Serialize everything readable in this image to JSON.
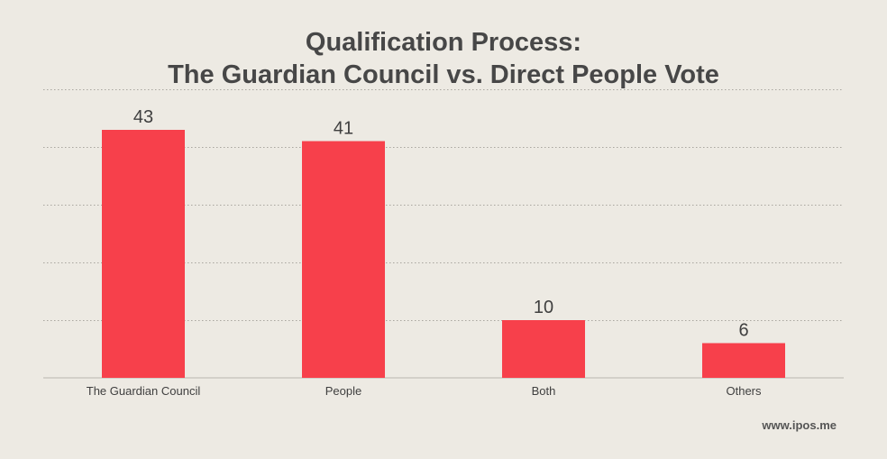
{
  "chart_data": {
    "type": "bar",
    "title_lines": [
      "Qualification Process:",
      "The Guardian Council vs. Direct People Vote"
    ],
    "categories": [
      "The Guardian Council",
      "People",
      "Both",
      "Others"
    ],
    "values": [
      43,
      41,
      10,
      6
    ],
    "ylim": [
      0,
      50
    ],
    "gridlines": [
      10,
      20,
      30,
      40,
      50
    ],
    "grid": true,
    "bar_color": "#f7404b",
    "xlabel": "",
    "ylabel": ""
  },
  "footer": {
    "source": "www.ipos.me"
  }
}
